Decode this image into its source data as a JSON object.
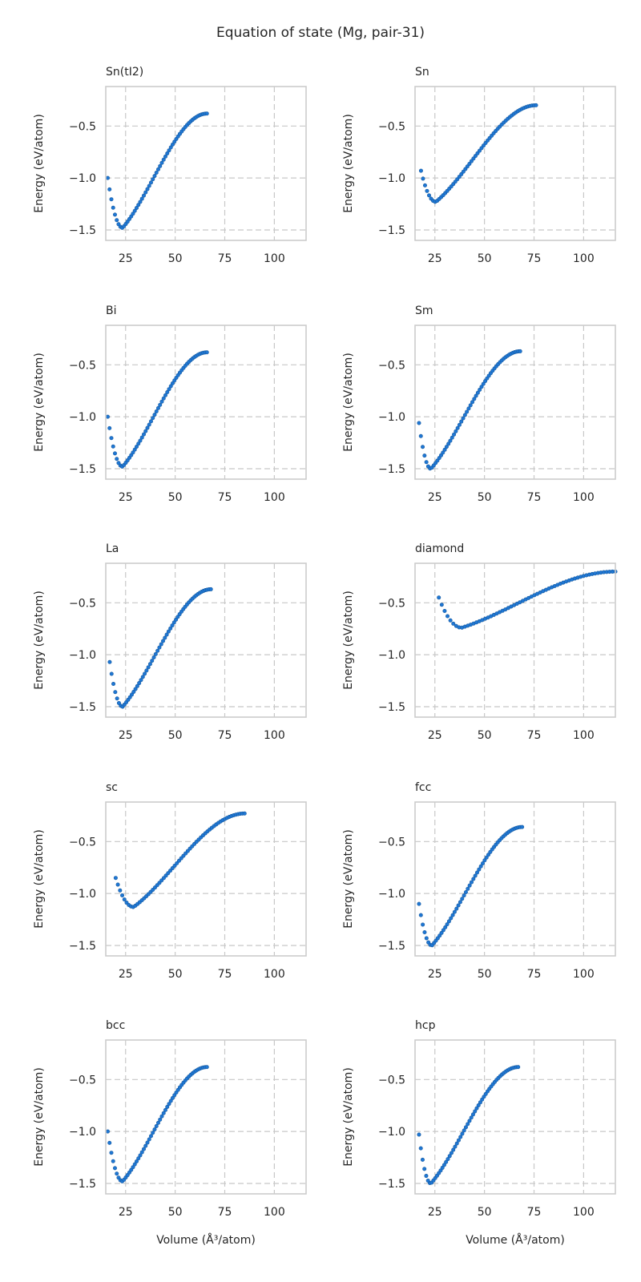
{
  "chart_data": {
    "type": "scatter",
    "title": "Equation of state (Mg, pair-31)",
    "xlabel": "Volume (Å³/atom)",
    "ylabel": "Energy (eV/atom)",
    "xlim": [
      15,
      116
    ],
    "ylim": [
      -1.6,
      -0.12
    ],
    "xticks": [
      25,
      50,
      75,
      100
    ],
    "yticks": [
      -1.5,
      -1.0,
      -0.5
    ],
    "grid": true,
    "color": "#1f77d4",
    "panels": [
      {
        "name": "Sn(tI2)",
        "v_min": 16,
        "v_eq": 23.5,
        "v_max": 66,
        "e_start": -1.0,
        "e_min": -1.48,
        "e_end": -0.38,
        "n": 56
      },
      {
        "name": "Sn",
        "v_min": 18,
        "v_eq": 25.5,
        "v_max": 76,
        "e_start": -0.93,
        "e_min": -1.23,
        "e_end": -0.3,
        "n": 58
      },
      {
        "name": "Bi",
        "v_min": 16,
        "v_eq": 23.5,
        "v_max": 66,
        "e_start": -1.0,
        "e_min": -1.48,
        "e_end": -0.38,
        "n": 56
      },
      {
        "name": "Sm",
        "v_min": 17,
        "v_eq": 23.0,
        "v_max": 68,
        "e_start": -1.06,
        "e_min": -1.5,
        "e_end": -0.37,
        "n": 56
      },
      {
        "name": "La",
        "v_min": 17,
        "v_eq": 23.5,
        "v_max": 68,
        "e_start": -1.07,
        "e_min": -1.5,
        "e_end": -0.37,
        "n": 56
      },
      {
        "name": "diamond",
        "v_min": 27,
        "v_eq": 38.5,
        "v_max": 116,
        "e_start": -0.45,
        "e_min": -0.74,
        "e_end": -0.2,
        "n": 62
      },
      {
        "name": "sc",
        "v_min": 20,
        "v_eq": 29.0,
        "v_max": 85,
        "e_start": -0.85,
        "e_min": -1.13,
        "e_end": -0.23,
        "n": 60
      },
      {
        "name": "fcc",
        "v_min": 17,
        "v_eq": 23.5,
        "v_max": 69,
        "e_start": -1.1,
        "e_min": -1.5,
        "e_end": -0.36,
        "n": 56
      },
      {
        "name": "bcc",
        "v_min": 16,
        "v_eq": 23.5,
        "v_max": 66,
        "e_start": -1.0,
        "e_min": -1.48,
        "e_end": -0.38,
        "n": 56
      },
      {
        "name": "hcp",
        "v_min": 17,
        "v_eq": 23.0,
        "v_max": 67,
        "e_start": -1.03,
        "e_min": -1.5,
        "e_end": -0.38,
        "n": 56
      }
    ]
  }
}
